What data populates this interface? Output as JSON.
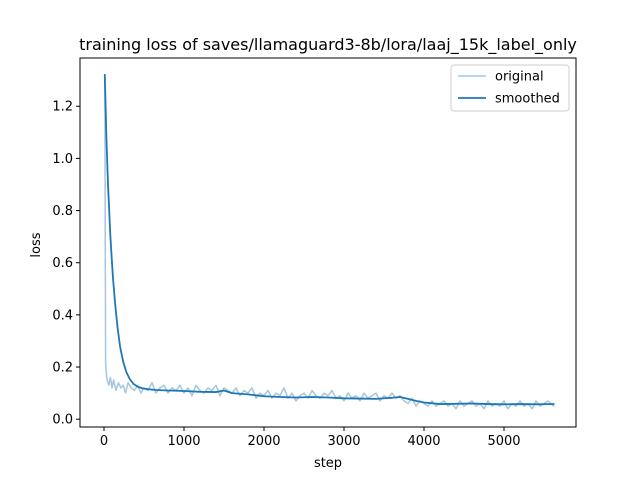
{
  "chart_data": {
    "type": "line",
    "title": "training loss of saves/llamaguard3-8b/lora/laaj_15k_label_only",
    "xlabel": "step",
    "ylabel": "loss",
    "xlim": [
      -300,
      5900
    ],
    "ylim": [
      -0.03,
      1.385
    ],
    "xticks": [
      0,
      1000,
      2000,
      3000,
      4000,
      5000
    ],
    "yticks": [
      0.0,
      0.2,
      0.4,
      0.6,
      0.8,
      1.0,
      1.2
    ],
    "xtick_labels": [
      "0",
      "1000",
      "2000",
      "3000",
      "4000",
      "5000"
    ],
    "ytick_labels": [
      "0.0",
      "0.2",
      "0.4",
      "0.6",
      "0.8",
      "1.0",
      "1.2"
    ],
    "grid": false,
    "legend_position": "top-right",
    "series": [
      {
        "name": "original",
        "color": "#a6c6df",
        "x": [
          10,
          20,
          30,
          40,
          60,
          80,
          100,
          120,
          150,
          180,
          210,
          240,
          270,
          300,
          340,
          380,
          420,
          460,
          500,
          550,
          600,
          650,
          700,
          750,
          800,
          850,
          900,
          950,
          1000,
          1050,
          1100,
          1150,
          1200,
          1250,
          1300,
          1350,
          1400,
          1450,
          1500,
          1550,
          1600,
          1650,
          1700,
          1750,
          1800,
          1850,
          1900,
          1950,
          2000,
          2050,
          2100,
          2150,
          2200,
          2250,
          2300,
          2350,
          2400,
          2450,
          2500,
          2550,
          2600,
          2650,
          2700,
          2750,
          2800,
          2850,
          2900,
          2950,
          3000,
          3050,
          3100,
          3150,
          3200,
          3250,
          3300,
          3350,
          3400,
          3450,
          3500,
          3550,
          3600,
          3650,
          3700,
          3750,
          3800,
          3850,
          3900,
          3950,
          4000,
          4050,
          4100,
          4150,
          4200,
          4250,
          4300,
          4350,
          4400,
          4450,
          4500,
          4550,
          4600,
          4650,
          4700,
          4750,
          4800,
          4850,
          4900,
          4950,
          5000,
          5050,
          5100,
          5150,
          5200,
          5250,
          5300,
          5350,
          5400,
          5450,
          5500,
          5550,
          5620
        ],
        "y": [
          1.32,
          0.22,
          0.17,
          0.15,
          0.13,
          0.16,
          0.12,
          0.15,
          0.11,
          0.14,
          0.12,
          0.13,
          0.1,
          0.14,
          0.12,
          0.11,
          0.13,
          0.1,
          0.12,
          0.11,
          0.14,
          0.1,
          0.12,
          0.13,
          0.1,
          0.12,
          0.11,
          0.13,
          0.1,
          0.12,
          0.09,
          0.13,
          0.11,
          0.1,
          0.12,
          0.11,
          0.13,
          0.09,
          0.12,
          0.11,
          0.1,
          0.12,
          0.09,
          0.11,
          0.1,
          0.12,
          0.08,
          0.1,
          0.09,
          0.11,
          0.08,
          0.1,
          0.09,
          0.12,
          0.08,
          0.1,
          0.07,
          0.09,
          0.1,
          0.08,
          0.11,
          0.09,
          0.08,
          0.1,
          0.09,
          0.11,
          0.08,
          0.09,
          0.07,
          0.1,
          0.08,
          0.09,
          0.07,
          0.1,
          0.08,
          0.09,
          0.1,
          0.07,
          0.09,
          0.08,
          0.1,
          0.08,
          0.09,
          0.07,
          0.06,
          0.08,
          0.05,
          0.07,
          0.06,
          0.05,
          0.07,
          0.05,
          0.06,
          0.07,
          0.05,
          0.06,
          0.04,
          0.07,
          0.05,
          0.06,
          0.07,
          0.05,
          0.06,
          0.04,
          0.07,
          0.05,
          0.06,
          0.05,
          0.07,
          0.04,
          0.06,
          0.05,
          0.07,
          0.05,
          0.06,
          0.04,
          0.07,
          0.05,
          0.06,
          0.07,
          0.05
        ]
      },
      {
        "name": "smoothed",
        "color": "#1f77b4",
        "x": [
          10,
          30,
          50,
          80,
          110,
          140,
          170,
          200,
          240,
          280,
          320,
          370,
          420,
          480,
          550,
          650,
          800,
          1000,
          1200,
          1400,
          1500,
          1600,
          1800,
          2000,
          2200,
          2400,
          2600,
          2800,
          3000,
          3200,
          3400,
          3600,
          3700,
          3800,
          3900,
          4000,
          4200,
          4400,
          4600,
          4800,
          5000,
          5200,
          5400,
          5620
        ],
        "y": [
          1.32,
          1.08,
          0.9,
          0.7,
          0.55,
          0.44,
          0.35,
          0.28,
          0.22,
          0.18,
          0.155,
          0.135,
          0.125,
          0.118,
          0.115,
          0.112,
          0.11,
          0.108,
          0.105,
          0.104,
          0.11,
          0.1,
          0.095,
          0.088,
          0.085,
          0.083,
          0.085,
          0.083,
          0.08,
          0.079,
          0.078,
          0.082,
          0.085,
          0.078,
          0.07,
          0.064,
          0.058,
          0.059,
          0.06,
          0.058,
          0.057,
          0.058,
          0.057,
          0.058
        ]
      }
    ]
  }
}
